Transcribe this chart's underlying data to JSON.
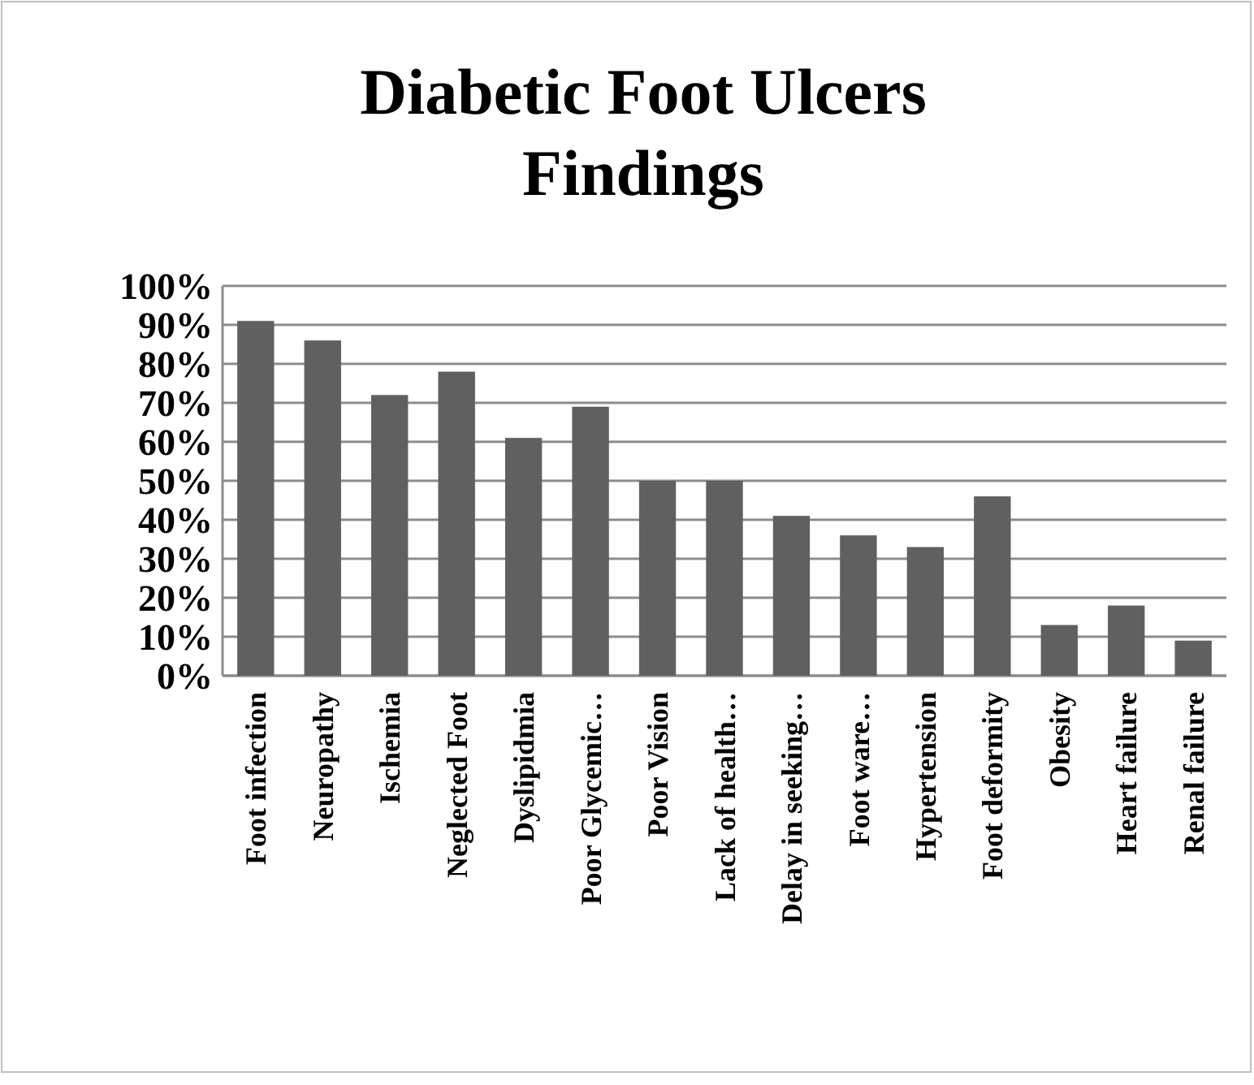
{
  "chart_data": {
    "type": "bar",
    "title": "Diabetic Foot Ulcers Findings",
    "categories": [
      "Foot infection",
      "Neuropathy",
      "Ischemia",
      "Neglected Foot",
      "Dyslipidmia",
      "Poor Glycemic…",
      "Poor Vision",
      "Lack of health…",
      "Delay in seeking…",
      "Foot ware…",
      "Hypertension",
      "Foot deformity",
      "Obesity",
      "Heart failure",
      "Renal failure"
    ],
    "values": [
      91,
      86,
      72,
      78,
      61,
      69,
      50,
      50,
      41,
      36,
      33,
      46,
      13,
      18,
      9
    ],
    "color": "#606060",
    "ylim": [
      0,
      100
    ],
    "yticks": [
      {
        "value": 0,
        "label": "0%"
      },
      {
        "value": 10,
        "label": "10%"
      },
      {
        "value": 20,
        "label": "20%"
      },
      {
        "value": 30,
        "label": "30%"
      },
      {
        "value": 40,
        "label": "40%"
      },
      {
        "value": 50,
        "label": "50%"
      },
      {
        "value": 60,
        "label": "60%"
      },
      {
        "value": 70,
        "label": "70%"
      },
      {
        "value": 80,
        "label": "80%"
      },
      {
        "value": 90,
        "label": "90%"
      },
      {
        "value": 100,
        "label": "100%"
      }
    ],
    "grid": "y"
  }
}
